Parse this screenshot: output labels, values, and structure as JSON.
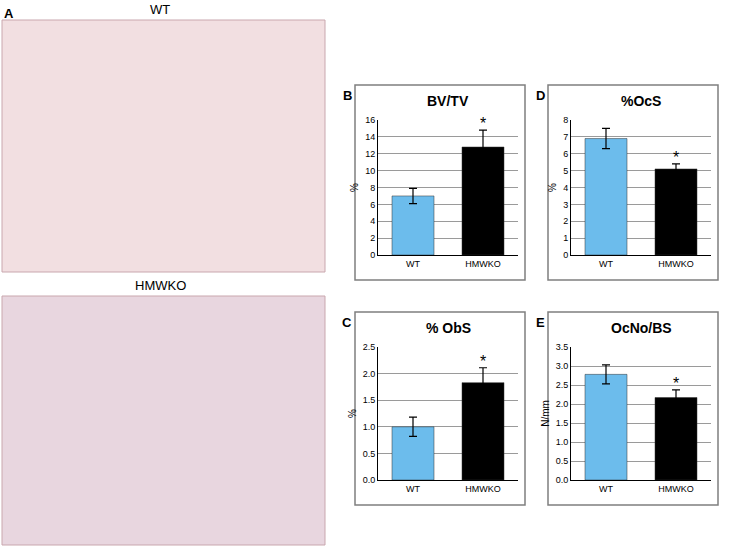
{
  "figure": {
    "panel_labels": [
      "A",
      "B",
      "C",
      "D",
      "E"
    ],
    "images": [
      {
        "label": "WT"
      },
      {
        "label": "HMWKO"
      }
    ]
  },
  "chart_data": [
    {
      "type": "bar",
      "title": "BV/TV",
      "y_label": "%",
      "categories": [
        "WT",
        "HMWKO"
      ],
      "values": [
        7.0,
        12.8
      ],
      "errors": [
        0.9,
        2.0
      ],
      "colors": [
        "#6cbcec",
        "#000000"
      ],
      "ylim": [
        0,
        16
      ],
      "yticks": [
        0,
        2,
        4,
        6,
        8,
        10,
        12,
        14,
        16
      ],
      "grid": true,
      "annotations": [
        {
          "category": "HMWKO",
          "text": "*"
        }
      ]
    },
    {
      "type": "bar",
      "title": "% ObS",
      "y_label": "%",
      "categories": [
        "WT",
        "HMWKO"
      ],
      "values": [
        1.0,
        1.83
      ],
      "errors": [
        0.18,
        0.28
      ],
      "colors": [
        "#6cbcec",
        "#000000"
      ],
      "ylim": [
        0,
        2.5
      ],
      "yticks": [
        {
          "value": 0,
          "label": "0.0"
        },
        {
          "value": 0.5,
          "label": "0.5"
        },
        {
          "value": 1,
          "label": "1.0"
        },
        {
          "value": 1.5,
          "label": "1.5"
        },
        {
          "value": 2,
          "label": "2.0"
        },
        {
          "value": 2.5,
          "label": "2.5"
        }
      ],
      "grid": true,
      "annotations": [
        {
          "category": "HMWKO",
          "text": "*"
        }
      ]
    },
    {
      "type": "bar",
      "title": "%OcS",
      "y_label": "%",
      "categories": [
        "WT",
        "HMWKO"
      ],
      "values": [
        6.9,
        5.1
      ],
      "errors": [
        0.6,
        0.3
      ],
      "colors": [
        "#6cbcec",
        "#000000"
      ],
      "ylim": [
        0,
        8
      ],
      "yticks": [
        0,
        1,
        2,
        3,
        4,
        5,
        6,
        7,
        8
      ],
      "grid": true,
      "annotations": [
        {
          "category": "HMWKO",
          "text": "*"
        }
      ]
    },
    {
      "type": "bar",
      "title": "OcNo/BS",
      "y_label": "N/mm",
      "categories": [
        "WT",
        "HMWKO"
      ],
      "values": [
        2.78,
        2.17
      ],
      "errors": [
        0.25,
        0.2
      ],
      "colors": [
        "#6cbcec",
        "#000000"
      ],
      "ylim": [
        0,
        3.5
      ],
      "yticks": [
        {
          "value": 0,
          "label": "0.0"
        },
        {
          "value": 0.5,
          "label": "0.5"
        },
        {
          "value": 1,
          "label": "1.0"
        },
        {
          "value": 1.5,
          "label": "1.5"
        },
        {
          "value": 2,
          "label": "2.0"
        },
        {
          "value": 2.5,
          "label": "2.5"
        },
        {
          "value": 3,
          "label": "3.0"
        },
        {
          "value": 3.5,
          "label": "3.5"
        }
      ],
      "grid": true,
      "annotations": [
        {
          "category": "HMWKO",
          "text": "*"
        }
      ]
    }
  ]
}
